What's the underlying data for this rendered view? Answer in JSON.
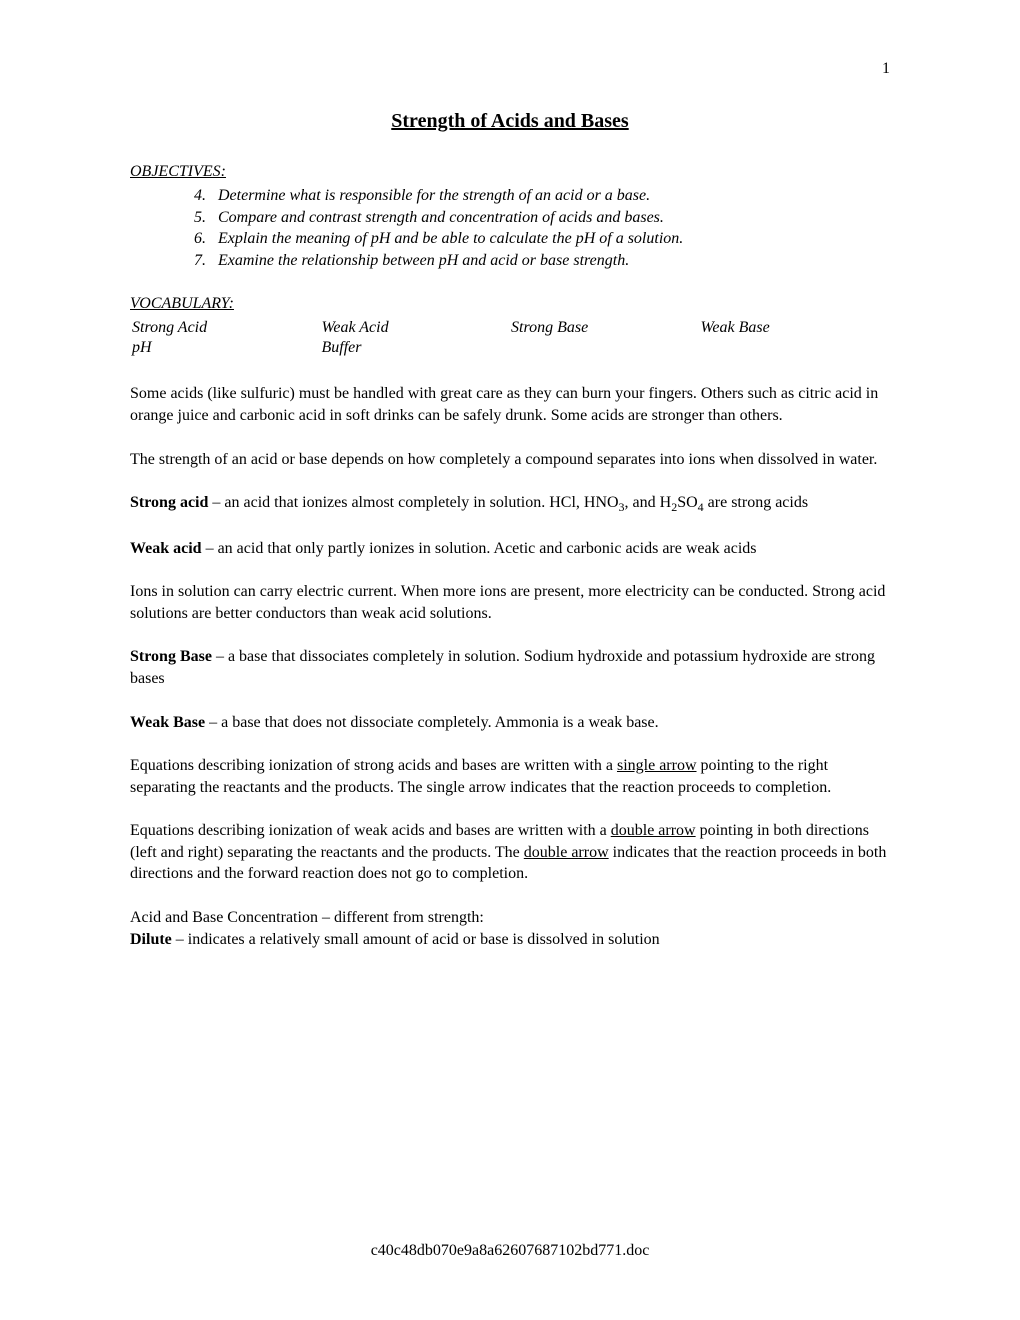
{
  "page_number": "1",
  "title": "Strength of Acids and Bases",
  "objectives": {
    "header": "OBJECTIVES:",
    "items": [
      {
        "num": "4.",
        "text": "Determine what is responsible for the strength of an acid or a base."
      },
      {
        "num": "5.",
        "text": "Compare and contrast strength and concentration of acids and bases."
      },
      {
        "num": "6.",
        "text": "Explain the meaning of pH and be able to calculate the pH of a solution."
      },
      {
        "num": "7.",
        "text": "Examine the relationship between pH and acid or base strength."
      }
    ]
  },
  "vocabulary": {
    "header": "VOCABULARY:",
    "row1": [
      "Strong Acid",
      "Weak Acid",
      "Strong Base",
      "Weak Base"
    ],
    "row2": [
      "pH",
      "Buffer",
      "",
      ""
    ]
  },
  "paragraphs": {
    "intro": "Some acids (like sulfuric) must be handled with great care as they can burn your fingers. Others such as citric acid in orange juice and carbonic acid in soft drinks can be safely drunk.  Some acids are stronger than others.",
    "strength_depends": "The strength of an acid or base depends on how completely a compound separates into ions when dissolved in water.",
    "strong_acid_label": "Strong acid",
    "strong_acid_text_1": " – an acid that ionizes almost completely in solution.  HCl, HNO",
    "strong_acid_sub1": "3",
    "strong_acid_text_2": ", and H",
    "strong_acid_sub2": "2",
    "strong_acid_text_3": "SO",
    "strong_acid_sub3": "4",
    "strong_acid_text_4": " are strong acids",
    "weak_acid_label": "Weak acid",
    "weak_acid_text": " – an acid that only partly ionizes in solution.  Acetic and carbonic acids are weak acids",
    "ions_conduct": "Ions in solution can carry electric current.  When more ions are present, more electricity can be conducted.  Strong acid solutions are better conductors than weak acid solutions.",
    "strong_base_label": "Strong Base",
    "strong_base_text": " – a base that dissociates completely in solution.  Sodium hydroxide and potassium hydroxide are strong bases",
    "weak_base_label": "Weak Base",
    "weak_base_text": " – a base that does not dissociate completely.  Ammonia is a weak base.",
    "single_arrow_1": "Equations describing ionization of strong acids and bases are written with a ",
    "single_arrow_u": "single arrow",
    "single_arrow_2": " pointing to the right separating the reactants and the products.  The single arrow indicates that the reaction proceeds to completion.",
    "double_arrow_1": "Equations describing ionization of weak acids and bases are written with a ",
    "double_arrow_u1": "double arrow",
    "double_arrow_2": " pointing in both directions (left and right) separating the reactants and the products.  The ",
    "double_arrow_u2": "double arrow",
    "double_arrow_3": " indicates that the reaction proceeds in both directions and the forward reaction does not go to completion.",
    "acid_base_conc": "Acid and Base Concentration – different from strength:",
    "dilute_label": "Dilute",
    "dilute_text": " – indicates a relatively small amount of acid or base is dissolved in solution"
  },
  "footer": "c40c48db070e9a8a62607687102bd771.doc"
}
